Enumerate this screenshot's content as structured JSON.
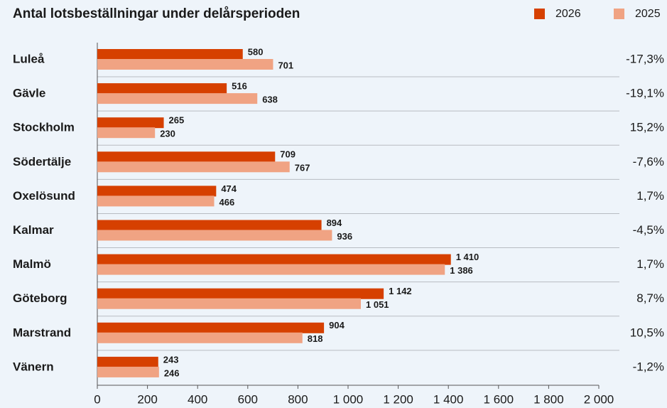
{
  "chart_data": {
    "type": "bar",
    "orientation": "horizontal",
    "title": "Antal lotsbeställningar under delårsperioden",
    "categories": [
      "Luleå",
      "Gävle",
      "Stockholm",
      "Södertälje",
      "Oxelösund",
      "Kalmar",
      "Malmö",
      "Göteborg",
      "Marstrand",
      "Vänern"
    ],
    "series": [
      {
        "name": "2026",
        "color": "#d64000",
        "values": [
          580,
          516,
          265,
          709,
          474,
          894,
          1410,
          1142,
          904,
          243
        ],
        "value_labels": [
          "580",
          "516",
          "265",
          "709",
          "474",
          "894",
          "1 410",
          "1 142",
          "904",
          "243"
        ]
      },
      {
        "name": "2025",
        "color": "#f0a383",
        "values": [
          701,
          638,
          230,
          767,
          466,
          936,
          1386,
          1051,
          818,
          246
        ],
        "value_labels": [
          "701",
          "638",
          "230",
          "767",
          "466",
          "936",
          "1 386",
          "1 051",
          "818",
          "246"
        ]
      }
    ],
    "annotations": [
      "-17,3%",
      "-19,1%",
      "15,2%",
      "-7,6%",
      "1,7%",
      "-4,5%",
      "1,7%",
      "8,7%",
      "10,5%",
      "-1,2%"
    ],
    "xlim": [
      0,
      2000
    ],
    "xticks": [
      0,
      200,
      400,
      600,
      800,
      {
        "value": 1000,
        "label": "1 000"
      },
      {
        "value": 1200,
        "label": "1 200"
      },
      {
        "value": 1400,
        "label": "1 400"
      },
      {
        "value": 1600,
        "label": "1 600"
      },
      {
        "value": 1800,
        "label": "1 800"
      },
      {
        "value": 2000,
        "label": "2 000"
      }
    ],
    "legend": "top-right"
  }
}
